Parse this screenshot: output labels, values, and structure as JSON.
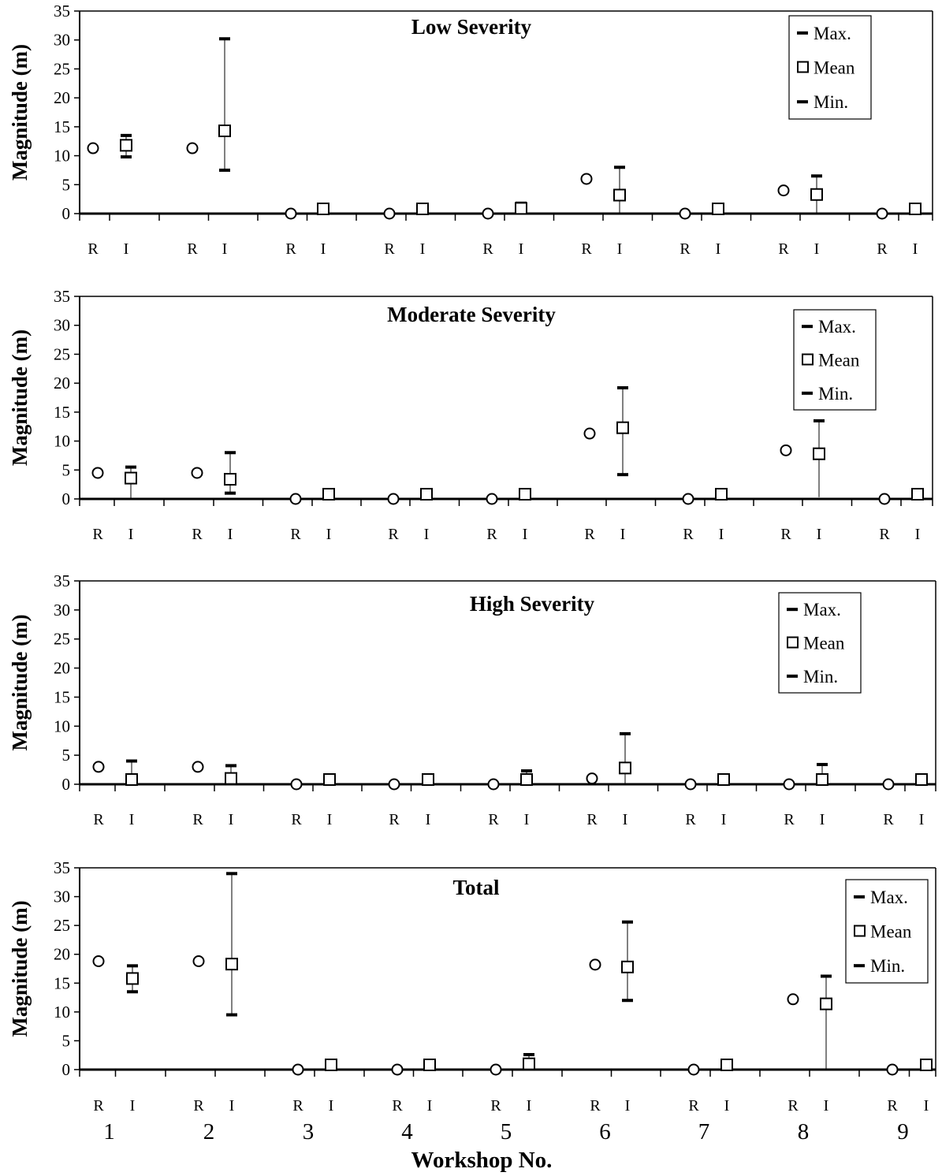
{
  "chart_data": [
    {
      "type": "scatter",
      "title": "Low Severity",
      "ylabel": "Magnitude (m)",
      "ylim": [
        0,
        35
      ],
      "yticks": [
        "0",
        "5",
        "10",
        "15",
        "20",
        "25",
        "30",
        "35"
      ],
      "group_labels": [
        "R",
        "I"
      ],
      "legend": [
        "Max.",
        "Mean",
        "Min."
      ],
      "legend_position": "top-right",
      "R": [
        11.3,
        11.3,
        0,
        0,
        0,
        6.0,
        0,
        4.0,
        0
      ],
      "I": {
        "max": [
          13.5,
          30.2,
          0,
          0,
          1.8,
          8.0,
          0,
          6.5,
          0
        ],
        "mean": [
          11.8,
          14.3,
          0.1,
          0.1,
          0.9,
          3.2,
          0.1,
          3.3,
          0.1
        ],
        "min": [
          9.8,
          7.5,
          0,
          0,
          0,
          0,
          0,
          0,
          0
        ]
      }
    },
    {
      "type": "scatter",
      "title": "Moderate Severity",
      "ylabel": "Magnitude (m)",
      "ylim": [
        0,
        35
      ],
      "yticks": [
        "0",
        "5",
        "10",
        "15",
        "20",
        "25",
        "30",
        "35"
      ],
      "group_labels": [
        "R",
        "I"
      ],
      "legend": [
        "Max.",
        "Mean",
        "Min."
      ],
      "legend_position": "top-right",
      "R": [
        4.5,
        4.5,
        0,
        0,
        0,
        11.3,
        0,
        8.4,
        0
      ],
      "I": {
        "max": [
          5.5,
          8.0,
          0,
          0,
          0,
          19.2,
          0,
          13.5,
          0
        ],
        "mean": [
          3.6,
          3.4,
          0.1,
          0.2,
          0.2,
          12.3,
          0.2,
          7.8,
          0.2
        ],
        "min": [
          0.2,
          1.0,
          0,
          0,
          0,
          4.2,
          0,
          0.3,
          0
        ]
      }
    },
    {
      "type": "scatter",
      "title": "High Severity",
      "ylabel": "Magnitude (m)",
      "ylim": [
        0,
        35
      ],
      "yticks": [
        "0",
        "5",
        "10",
        "15",
        "20",
        "25",
        "30",
        "35"
      ],
      "group_labels": [
        "R",
        "I"
      ],
      "legend": [
        "Max.",
        "Mean",
        "Min."
      ],
      "legend_position": "top-right",
      "R": [
        3.0,
        3.0,
        0,
        0,
        0,
        1.0,
        0,
        0,
        0
      ],
      "I": {
        "max": [
          4.0,
          3.2,
          0,
          0,
          2.3,
          8.7,
          0,
          3.4,
          0
        ],
        "mean": [
          0.5,
          1.0,
          0.1,
          0.1,
          0.6,
          2.8,
          0.1,
          0.6,
          0.1
        ],
        "min": [
          0,
          0,
          0,
          0,
          0,
          0,
          0,
          0,
          0
        ]
      }
    },
    {
      "type": "scatter",
      "title": "Total",
      "ylabel": "Magnitude (m)",
      "ylim": [
        0,
        35
      ],
      "yticks": [
        "0",
        "5",
        "10",
        "15",
        "20",
        "25",
        "30",
        "35"
      ],
      "group_labels": [
        "R",
        "I"
      ],
      "legend": [
        "Max.",
        "Mean",
        "Min."
      ],
      "legend_position": "top-right",
      "R": [
        18.8,
        18.8,
        0,
        0,
        0,
        18.2,
        0,
        12.2,
        0
      ],
      "I": {
        "max": [
          18.0,
          34.0,
          0,
          0,
          2.6,
          25.6,
          0,
          16.2,
          0
        ],
        "mean": [
          15.8,
          18.3,
          0.1,
          0.2,
          1.0,
          17.8,
          0.2,
          11.4,
          0.2
        ],
        "min": [
          13.5,
          9.5,
          0,
          0,
          0,
          12.0,
          0,
          0.2,
          0
        ]
      }
    }
  ],
  "workshops": [
    "1",
    "2",
    "3",
    "4",
    "5",
    "6",
    "7",
    "8",
    "9"
  ],
  "xlabel": "Workshop No."
}
